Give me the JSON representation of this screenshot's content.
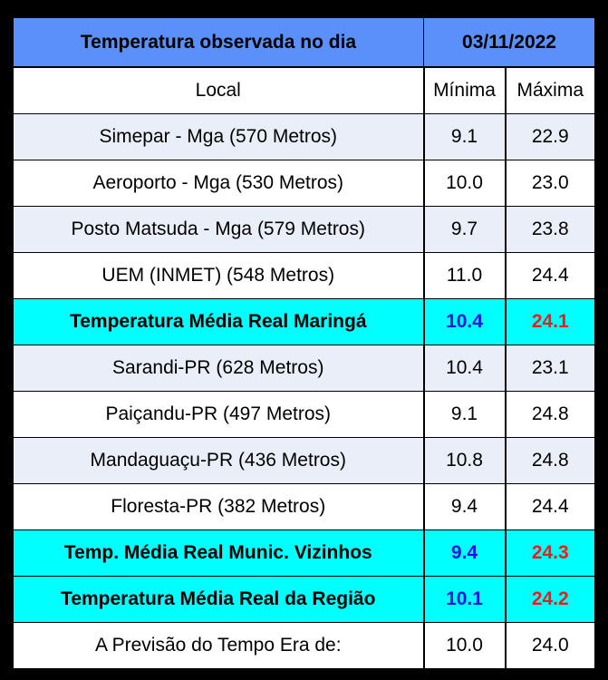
{
  "header": {
    "title": "Temperatura observada no dia",
    "date": "03/11/2022"
  },
  "columns": {
    "local": "Local",
    "min": "Mínima",
    "max": "Máxima"
  },
  "colors": {
    "header_bg": "#5b8ff9",
    "row_shade": "#eaeef8",
    "average_bg": "#00ffff",
    "min_text": "#1515e6",
    "max_text": "#ee1c1c"
  },
  "rows": [
    {
      "local": "Simepar - Mga  (570 Metros)",
      "min": "9.1",
      "max": "22.9",
      "kind": "shade"
    },
    {
      "local": "Aeroporto - Mga (530 Metros)",
      "min": "10.0",
      "max": "23.0",
      "kind": "plain"
    },
    {
      "local": "Posto Matsuda - Mga (579 Metros)",
      "min": "9.7",
      "max": "23.8",
      "kind": "shade"
    },
    {
      "local": "UEM  (INMET)  (548 Metros)",
      "min": "11.0",
      "max": "24.4",
      "kind": "plain"
    },
    {
      "local": "Temperatura Média Real Maringá",
      "min": "10.4",
      "max": "24.1",
      "kind": "avg"
    },
    {
      "local": "Sarandi-PR  (628 Metros)",
      "min": "10.4",
      "max": "23.1",
      "kind": "shade"
    },
    {
      "local": "Paiçandu-PR (497 Metros)",
      "min": "9.1",
      "max": "24.8",
      "kind": "plain"
    },
    {
      "local": "Mandaguaçu-PR (436 Metros)",
      "min": "10.8",
      "max": "24.8",
      "kind": "shade"
    },
    {
      "local": "Floresta-PR (382 Metros)",
      "min": "9.4",
      "max": "24.4",
      "kind": "plain"
    },
    {
      "local": "Temp. Média Real Munic. Vizinhos",
      "min": "9.4",
      "max": "24.3",
      "kind": "avg"
    },
    {
      "local": "Temperatura Média Real da Região",
      "min": "10.1",
      "max": "24.2",
      "kind": "avg"
    },
    {
      "local": "A Previsão do Tempo Era de:",
      "min": "10.0",
      "max": "24.0",
      "kind": "plain"
    }
  ]
}
